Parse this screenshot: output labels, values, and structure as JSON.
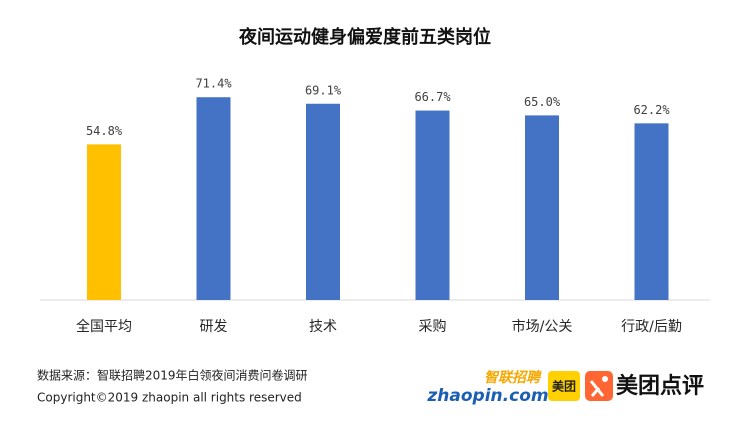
{
  "chart_data": {
    "type": "bar",
    "title": "夜间运动健身偏爱度前五类岗位",
    "categories": [
      "全国平均",
      "研发",
      "技术",
      "采购",
      "市场/公关",
      "行政/后勤"
    ],
    "values": [
      54.8,
      71.4,
      69.1,
      66.7,
      65.0,
      62.2
    ],
    "value_labels": [
      "54.8%",
      "71.4%",
      "69.1%",
      "66.7%",
      "65.0%",
      "62.2%"
    ],
    "colors": [
      "#ffc000",
      "#4472c4",
      "#4472c4",
      "#4472c4",
      "#4472c4",
      "#4472c4"
    ]
  },
  "footer": {
    "source": "数据来源：智联招聘2019年白领夜间消费问卷调研",
    "copyright": "Copyright©2019 zhaopin all rights reserved",
    "logo_zhaopin_cn": "智联招聘",
    "logo_zhaopin_en": "zhaopin.com",
    "logo_meituan": "美团",
    "logo_dianping": "美团点评"
  }
}
